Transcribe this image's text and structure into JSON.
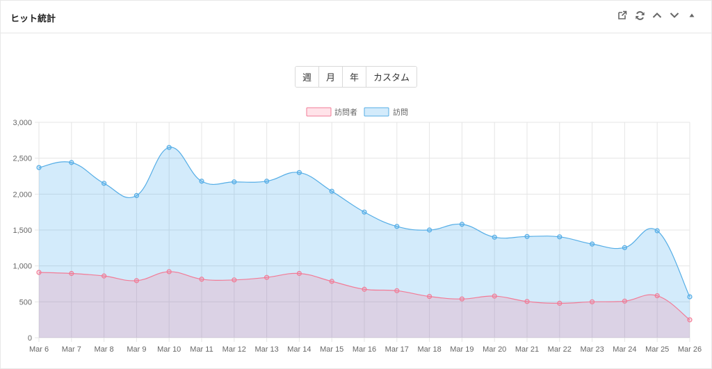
{
  "header": {
    "title": "ヒット統計",
    "tools": [
      "external-link-icon",
      "refresh-icon",
      "chevron-up-icon",
      "chevron-down-icon",
      "collapse-triangle-icon"
    ]
  },
  "range_buttons": [
    "週",
    "月",
    "年",
    "カスタム"
  ],
  "colors": {
    "visitors_line": "#f27b96",
    "visitors_fill": "rgba(255, 99, 132, 0.18)",
    "visits_line": "#54ade6",
    "visits_fill": "rgba(54, 162, 235, 0.22)",
    "grid": "#e5e5e5"
  },
  "chart_data": {
    "type": "area",
    "categories": [
      "Mar 6",
      "Mar 7",
      "Mar 8",
      "Mar 9",
      "Mar 10",
      "Mar 11",
      "Mar 12",
      "Mar 13",
      "Mar 14",
      "Mar 15",
      "Mar 16",
      "Mar 17",
      "Mar 18",
      "Mar 19",
      "Mar 20",
      "Mar 21",
      "Mar 22",
      "Mar 23",
      "Mar 24",
      "Mar 25",
      "Mar 26"
    ],
    "series": [
      {
        "name": "訪問者",
        "values": [
          910,
          895,
          860,
          795,
          920,
          815,
          805,
          840,
          895,
          785,
          675,
          655,
          575,
          540,
          580,
          505,
          480,
          500,
          510,
          585,
          250
        ]
      },
      {
        "name": "訪問",
        "values": [
          2370,
          2440,
          2150,
          1980,
          2650,
          2180,
          2170,
          2180,
          2300,
          2040,
          1750,
          1550,
          1500,
          1580,
          1400,
          1410,
          1405,
          1305,
          1255,
          1490,
          570
        ]
      }
    ],
    "ylim": [
      0,
      3000
    ],
    "yticks": [
      0,
      500,
      1000,
      1500,
      2000,
      2500,
      3000
    ],
    "ytick_labels": [
      "0",
      "500",
      "1,000",
      "1,500",
      "2,000",
      "2,500",
      "3,000"
    ],
    "grid": true,
    "legend": "top-center"
  }
}
